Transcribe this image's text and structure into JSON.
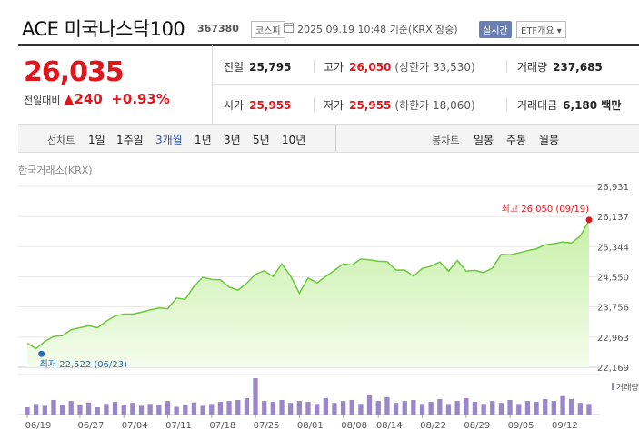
{
  "header": {
    "etf_name": "ACE 미국나스닥100",
    "code": "367380",
    "market_tag": "코스피",
    "datetime": "2025.09.19 10:48",
    "basis": "기준(KRX 장중)",
    "realtime_label": "실시간",
    "etf_info_label": "ETF개요 ▾"
  },
  "quote": {
    "price": "26,035",
    "change_label": "전일대비",
    "change_arrow": "▲",
    "change_amount": "240",
    "change_pct": "+0.93%",
    "prev_close_label": "전일",
    "prev_close": "25,795",
    "high_label": "고가",
    "high": "26,050",
    "upper_limit": "(상한가 33,530)",
    "volume_label": "거래량",
    "volume": "237,685",
    "open_label": "시가",
    "open": "25,955",
    "low_label": "저가",
    "low": "25,955",
    "lower_limit": "(하한가 18,060)",
    "amount_label": "거래대금",
    "amount": "6,180 백만"
  },
  "period_bar": {
    "line_label": "선차트",
    "line_periods": [
      "1일",
      "1주일",
      "3개월",
      "1년",
      "3년",
      "5년",
      "10년"
    ],
    "active_period": "3개월",
    "candle_label": "봉차트",
    "candle_periods": [
      "일봉",
      "주봉",
      "월봉"
    ]
  },
  "chart": {
    "exchange_label": "한국거래소(KRX)",
    "high_annotation": "최고 26,050 (09/19)",
    "low_annotation": "최저 22,522 (06/23)",
    "volume_legend": "거래량",
    "colors": {
      "line": "#6cc83c",
      "fill_top": "#c8f0a8",
      "fill_bottom": "#f3fcec",
      "volume": "#9b86c8",
      "high_dot": "#e0161c",
      "low_dot": "#2b6ab0"
    }
  },
  "chart_data": {
    "type": "area",
    "ylim": [
      22169,
      26931
    ],
    "y_ticks": [
      "26,931",
      "26,137",
      "25,344",
      "24,550",
      "23,756",
      "22,963",
      "22,169"
    ],
    "y_tick_values": [
      26931,
      26137,
      25344,
      24550,
      23756,
      22963,
      22169
    ],
    "x_tick_labels": [
      "06/19",
      "06/27",
      "07/04",
      "07/11",
      "07/18",
      "07/25",
      "08/01",
      "08/08",
      "08/14",
      "08/22",
      "08/29",
      "09/05",
      "09/12"
    ],
    "x_tick_index": [
      0,
      6,
      11,
      16,
      21,
      26,
      31,
      36,
      40,
      45,
      50,
      55,
      60
    ],
    "series": [
      {
        "values": [
          22800,
          22660,
          22850,
          22980,
          23000,
          23160,
          23210,
          23260,
          23210,
          23380,
          23520,
          23570,
          23570,
          23620,
          23680,
          23730,
          23710,
          23990,
          23960,
          24300,
          24540,
          24480,
          24470,
          24280,
          24200,
          24380,
          24620,
          24710,
          24560,
          24890,
          24570,
          24120,
          24520,
          24390,
          24560,
          24720,
          24890,
          24860,
          25020,
          25000,
          24960,
          24950,
          24730,
          24730,
          24570,
          24770,
          24830,
          24940,
          24700,
          24980,
          24700,
          24720,
          24660,
          24780,
          25140,
          25130,
          25180,
          25240,
          25290,
          25390,
          25420,
          25470,
          25440,
          25620,
          26035
        ]
      }
    ],
    "volume": [
      15,
      22,
      18,
      30,
      20,
      28,
      19,
      25,
      15,
      22,
      26,
      20,
      24,
      18,
      22,
      20,
      28,
      16,
      20,
      25,
      18,
      22,
      26,
      28,
      30,
      34,
      75,
      28,
      26,
      30,
      24,
      28,
      26,
      22,
      34,
      24,
      28,
      30,
      22,
      40,
      28,
      36,
      24,
      28,
      30,
      22,
      26,
      32,
      22,
      28,
      34,
      26,
      22,
      28,
      24,
      30,
      22,
      28,
      26,
      32,
      28,
      38,
      32,
      24,
      22
    ],
    "high_point": {
      "index": 64,
      "value": 26050
    },
    "low_point": {
      "index": 1,
      "value": 22522
    }
  }
}
